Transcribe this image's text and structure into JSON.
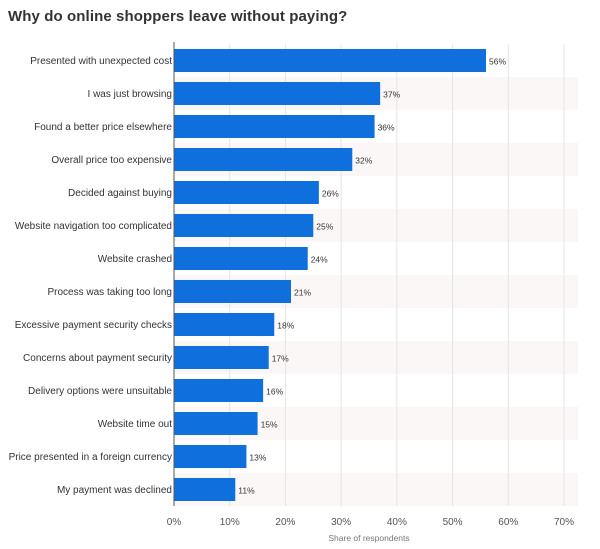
{
  "title": "Why do online shoppers leave without paying?",
  "chart_data": {
    "type": "bar",
    "orientation": "horizontal",
    "title": "Why do online shoppers leave without paying?",
    "xlabel": "Share of respondents",
    "ylabel": "",
    "xlim": [
      0,
      70
    ],
    "tick_unit": "%",
    "x_ticks": [
      0,
      10,
      20,
      30,
      40,
      50,
      60,
      70
    ],
    "grid": "vertical",
    "categories": [
      "Presented with unexpected cost",
      "I was just browsing",
      "Found a better price elsewhere",
      "Overall price too expensive",
      "Decided against buying",
      "Website navigation too complicated",
      "Website crashed",
      "Process was taking too long",
      "Excessive payment security checks",
      "Concerns about payment security",
      "Delivery options were unsuitable",
      "Website time out",
      "Price presented in a foreign currency",
      "My payment was declined"
    ],
    "values": [
      56,
      37,
      36,
      32,
      26,
      25,
      24,
      21,
      18,
      17,
      16,
      15,
      13,
      11
    ],
    "value_labels": [
      "56%",
      "37%",
      "36%",
      "32%",
      "26%",
      "25%",
      "24%",
      "21%",
      "18%",
      "17%",
      "16%",
      "15%",
      "13%",
      "11%"
    ],
    "bar_color": "#0f6fdc"
  }
}
